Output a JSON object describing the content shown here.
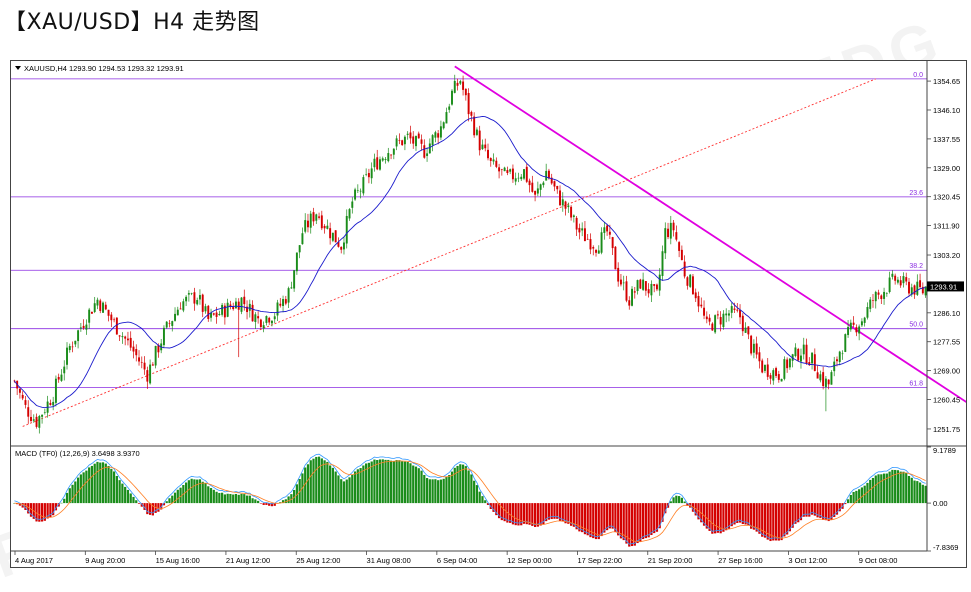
{
  "page": {
    "title": "【XAU/USD】H4 走势图"
  },
  "watermark": {
    "text": "FDG"
  },
  "chart_data": [
    {
      "type": "candlestick",
      "header": "XAUUSD,H4  1293.90 1294.53 1293.32 1293.91",
      "ylim": [
        1247.0,
        1360.0
      ],
      "y_ticks": [
        1354.65,
        1346.1,
        1337.55,
        1329.0,
        1320.45,
        1311.9,
        1303.2,
        1294.65,
        1286.1,
        1277.55,
        1269.0,
        1260.45,
        1251.75
      ],
      "price_tag": "1293.91",
      "last_price": 1293.91,
      "x_labels": [
        "4 Aug 2017",
        "9 Aug 20:00",
        "15 Aug 16:00",
        "21 Aug 12:00",
        "25 Aug 12:00",
        "31 Aug 08:00",
        "6 Sep 04:00",
        "12 Sep 00:00",
        "17 Sep 22:00",
        "21 Sep 20:00",
        "27 Sep 16:00",
        "3 Oct 12:00",
        "9 Oct 08:00"
      ],
      "key_closes": [
        [
          0,
          1266.0
        ],
        [
          4,
          1258.0
        ],
        [
          8,
          1254.0
        ],
        [
          14,
          1262.0
        ],
        [
          20,
          1276.0
        ],
        [
          26,
          1285.0
        ],
        [
          30,
          1290.0
        ],
        [
          36,
          1283.0
        ],
        [
          42,
          1276.0
        ],
        [
          48,
          1268.0
        ],
        [
          54,
          1280.0
        ],
        [
          60,
          1289.0
        ],
        [
          66,
          1291.0
        ],
        [
          70,
          1284.0
        ],
        [
          76,
          1287.0
        ],
        [
          82,
          1290.0
        ],
        [
          88,
          1284.0
        ],
        [
          94,
          1286.0
        ],
        [
          99,
          1292.0
        ],
        [
          104,
          1310.0
        ],
        [
          109,
          1316.0
        ],
        [
          114,
          1310.0
        ],
        [
          118,
          1306.0
        ],
        [
          122,
          1319.0
        ],
        [
          126,
          1324.0
        ],
        [
          130,
          1330.0
        ],
        [
          136,
          1335.0
        ],
        [
          142,
          1338.0
        ],
        [
          148,
          1334.0
        ],
        [
          154,
          1341.0
        ],
        [
          158,
          1351.0
        ],
        [
          161,
          1355.0
        ],
        [
          164,
          1346.0
        ],
        [
          168,
          1336.0
        ],
        [
          172,
          1330.0
        ],
        [
          178,
          1326.0
        ],
        [
          184,
          1328.0
        ],
        [
          188,
          1320.0
        ],
        [
          192,
          1328.0
        ],
        [
          196,
          1321.0
        ],
        [
          200,
          1316.0
        ],
        [
          204,
          1310.0
        ],
        [
          210,
          1306.0
        ],
        [
          214,
          1310.0
        ],
        [
          218,
          1297.0
        ],
        [
          222,
          1290.0
        ],
        [
          226,
          1295.0
        ],
        [
          232,
          1291.0
        ],
        [
          235,
          1310.0
        ],
        [
          238,
          1311.0
        ],
        [
          242,
          1298.0
        ],
        [
          246,
          1292.0
        ],
        [
          250,
          1282.0
        ],
        [
          254,
          1284.0
        ],
        [
          258,
          1286.0
        ],
        [
          262,
          1285.0
        ],
        [
          266,
          1276.0
        ],
        [
          270,
          1270.0
        ],
        [
          276,
          1268.0
        ],
        [
          280,
          1272.0
        ],
        [
          284,
          1275.0
        ],
        [
          288,
          1272.0
        ],
        [
          292,
          1266.0
        ],
        [
          294,
          1265.0
        ],
        [
          298,
          1275.0
        ],
        [
          302,
          1281.0
        ],
        [
          306,
          1284.0
        ],
        [
          310,
          1290.0
        ],
        [
          314,
          1293.0
        ],
        [
          318,
          1296.0
        ],
        [
          322,
          1294.0
        ]
      ],
      "fibonacci_levels": [
        {
          "label": "0.0",
          "price": 1355.3
        },
        {
          "label": "23.6",
          "price": 1320.4
        },
        {
          "label": "38.2",
          "price": 1298.7
        },
        {
          "label": "50.0",
          "price": 1281.4
        },
        {
          "label": "61.8",
          "price": 1264.0
        }
      ],
      "trendlines": [
        {
          "name": "downtrend",
          "style": "solid",
          "color": "#e000e0",
          "from": [
            159,
            1359.0
          ],
          "to": [
            359,
            1251.5
          ]
        },
        {
          "name": "uptrend",
          "style": "dotted",
          "color": "#ff3030",
          "from": [
            3,
            1252.5
          ],
          "to": [
            311,
            1355.3
          ]
        }
      ],
      "ma_color": "#1a1acc",
      "bull_color": "#1a8c1a",
      "bear_color": "#d40000"
    },
    {
      "type": "macd-histogram",
      "header": "MACD (TF0) (12,26,9) 3.6498 3.9370",
      "ylim": [
        -7.8369,
        9.1789
      ],
      "y_ticks": [
        9.1789,
        0.0,
        -7.8369
      ],
      "params": [
        12,
        26,
        9
      ],
      "macd_value": 3.6498,
      "signal_value": 3.937,
      "macd_color": "#3399ff",
      "signal_color": "#ff7f24",
      "hist_pos_color": "#1a8c1a",
      "hist_neg_color": "#d40000"
    }
  ]
}
